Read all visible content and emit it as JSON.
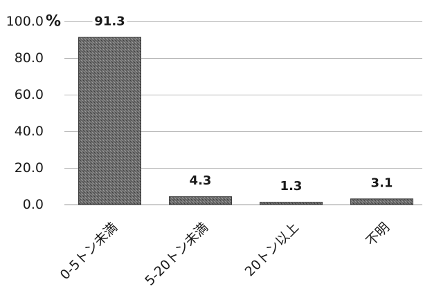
{
  "chart_data": {
    "type": "bar",
    "categories": [
      "0-5トン未満",
      "5-20トン未満",
      "20トン以上",
      "不明"
    ],
    "values": [
      91.3,
      4.3,
      1.3,
      3.1
    ],
    "data_labels": [
      "91.3",
      "4.3",
      "1.3",
      "3.1"
    ],
    "ylabel": "%",
    "ylim": [
      0,
      100
    ],
    "yticks": [
      0,
      20,
      40,
      60,
      80,
      100
    ],
    "ytick_labels": [
      "0.0",
      "20.0",
      "40.0",
      "60.0",
      "80.0",
      "100.0"
    ],
    "grid": true,
    "legend": false
  },
  "colors": {
    "bar_fill": "#6e6e6e",
    "bar_edge": "#3c3c3c",
    "grid": "#b5b5b5",
    "axis": "#8a8a8a"
  }
}
